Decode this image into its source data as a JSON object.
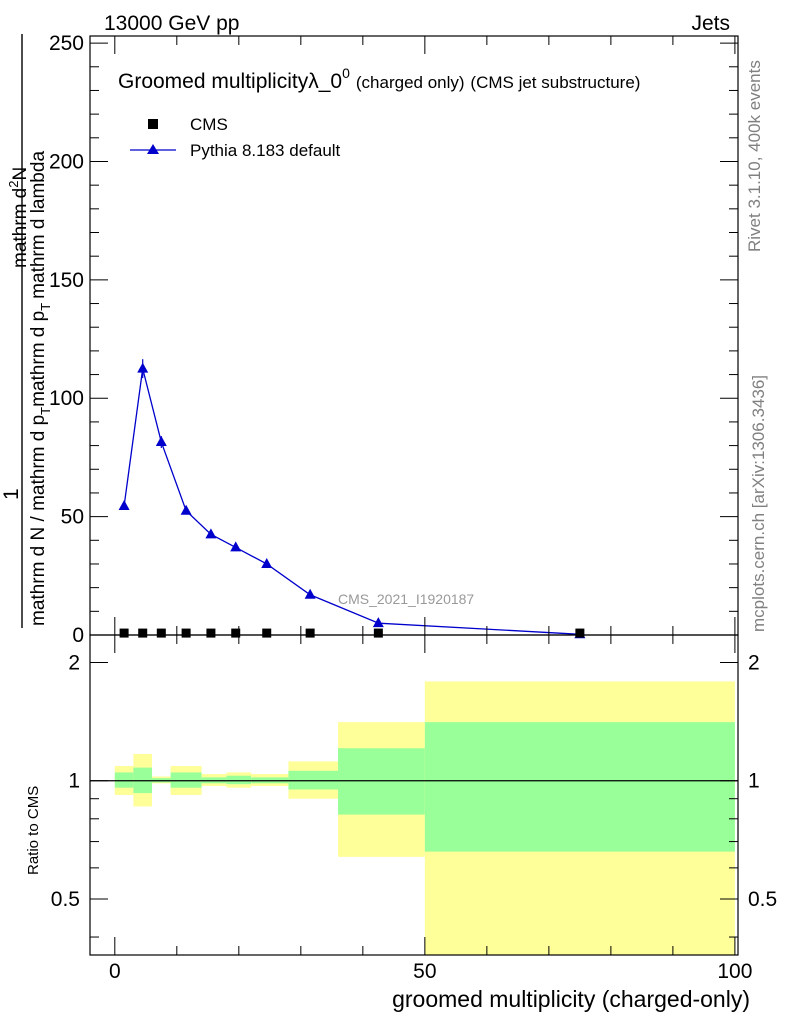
{
  "header": {
    "energy_label": "13000 GeV pp",
    "process_label": "Jets"
  },
  "side_labels": {
    "rivet": "Rivet 3.1.10,  400k events",
    "mcplots": "mcplots.cern.ch [arXiv:1306.3436]"
  },
  "colors": {
    "mc_line": "#0000cc",
    "band_outer": "#ffff99",
    "band_inner": "#99ff99",
    "data": "#000000",
    "watermark": "#999999"
  },
  "chart_data": [
    {
      "type": "line",
      "title_main": "Groomed multiplicity",
      "title_lambda": "λ_0",
      "title_sup": "0",
      "title_tail_small": "(charged only)",
      "title_tail": "(CMS jet substructure)",
      "watermark": "CMS_2021_I1920187",
      "ylabel_numerator": "1",
      "ylabel_denominator": "mathrm d N / mathrm d p",
      "ylabel_mid": "mathrm d p",
      "ylabel_mid2": "mathrm d lambda",
      "ylabel_den_tail": "mathrm d",
      "ylabel_sub": "T",
      "ylabel_sup": "2",
      "ylabel_top": "mathrm d",
      "ylabel_top2": "N",
      "xlim": [
        -4,
        100.5
      ],
      "ylim": [
        0,
        253
      ],
      "yticks": [
        "0",
        "50",
        "100",
        "150",
        "200",
        "250"
      ],
      "ytick_values": [
        0,
        50,
        100,
        150,
        200,
        250
      ],
      "legend": [
        {
          "name": "CMS",
          "marker": "square"
        },
        {
          "name": "Pythia 8.183 default",
          "marker": "triangle"
        }
      ],
      "series": [
        {
          "name": "CMS",
          "x": [
            1.5,
            4.5,
            7.5,
            11.5,
            15.5,
            19.5,
            24.5,
            31.5,
            42.5,
            75
          ],
          "values": [
            0.6,
            0.6,
            0.6,
            0.6,
            0.6,
            0.6,
            0.6,
            0.6,
            0.6,
            0.6
          ]
        },
        {
          "name": "Pythia 8.183 default",
          "x": [
            1.5,
            4.5,
            7.5,
            11.5,
            15.5,
            19.5,
            24.5,
            31.5,
            42.5,
            75
          ],
          "values": [
            54.5,
            112.5,
            81.5,
            52.5,
            42.5,
            37.0,
            30.0,
            17.0,
            5.0,
            0.3
          ],
          "errors": [
            1.5,
            4.0,
            2.5,
            1.5,
            1.2,
            1.0,
            0.8,
            0.6,
            0.3,
            0.1
          ]
        }
      ]
    },
    {
      "type": "area",
      "ylabel": "Ratio to CMS",
      "xlabel": "groomed multiplicity (charged-only)",
      "xlim": [
        -4,
        100.5
      ],
      "ylim": [
        0.36,
        2.35
      ],
      "xticks": [
        "0",
        "50",
        "100"
      ],
      "xtick_values": [
        0,
        50,
        100
      ],
      "yticks": [
        "0.5",
        "1",
        "2"
      ],
      "ytick_values": [
        0.5,
        1,
        2
      ],
      "reference": 1,
      "bins": [
        {
          "x0": 0,
          "x1": 3,
          "outer": [
            0.92,
            1.09
          ],
          "inner": [
            0.96,
            1.05
          ]
        },
        {
          "x0": 3,
          "x1": 6,
          "outer": [
            0.86,
            1.17
          ],
          "inner": [
            0.93,
            1.08
          ]
        },
        {
          "x0": 6,
          "x1": 9,
          "outer": [
            0.985,
            1.025
          ],
          "inner": [
            0.99,
            1.015
          ]
        },
        {
          "x0": 9,
          "x1": 14,
          "outer": [
            0.92,
            1.09
          ],
          "inner": [
            0.96,
            1.05
          ]
        },
        {
          "x0": 14,
          "x1": 18,
          "outer": [
            0.97,
            1.04
          ],
          "inner": [
            0.985,
            1.02
          ]
        },
        {
          "x0": 18,
          "x1": 22,
          "outer": [
            0.96,
            1.05
          ],
          "inner": [
            0.98,
            1.03
          ]
        },
        {
          "x0": 22,
          "x1": 28,
          "outer": [
            0.97,
            1.04
          ],
          "inner": [
            0.985,
            1.02
          ]
        },
        {
          "x0": 28,
          "x1": 36,
          "outer": [
            0.9,
            1.12
          ],
          "inner": [
            0.95,
            1.06
          ]
        },
        {
          "x0": 36,
          "x1": 50,
          "outer": [
            0.64,
            1.41
          ],
          "inner": [
            0.82,
            1.21
          ]
        },
        {
          "x0": 50,
          "x1": 100,
          "outer": [
            0.36,
            1.79
          ],
          "inner": [
            0.66,
            1.41
          ]
        }
      ]
    }
  ]
}
